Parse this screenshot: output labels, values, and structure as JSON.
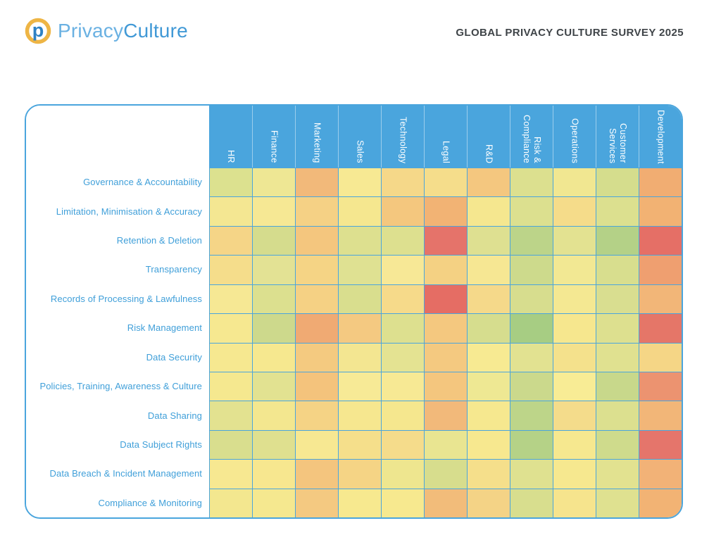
{
  "header": {
    "brand_privacy": "Privacy",
    "brand_culture": "Culture",
    "title": "GLOBAL PRIVACY CULTURE SURVEY 2025"
  },
  "colors": {
    "accent_blue": "#4aa5dd",
    "row_label_text": "#3f9fd9",
    "column_header_text": "#ffffff",
    "title_text": "#3f4448",
    "logo_privacy_text": "#6ab1e2",
    "logo_culture_text": "#4199d6",
    "logo_ring_gold": "#eeb545",
    "logo_p_blue": "#2e81c4"
  },
  "chart_data": {
    "type": "heatmap",
    "title": "GLOBAL PRIVACY CULTURE SURVEY 2025",
    "legend": "none shown; cell background color encodes result from green through yellow to orange/red; no numeric labels visible",
    "columns": [
      "HR",
      "Finance",
      "Marketing",
      "Sales",
      "Technology",
      "Legal",
      "R&D",
      "Risk & Compliance",
      "Operations",
      "Customer Services",
      "Development"
    ],
    "rows": [
      "Governance & Accountability",
      "Limitation, Minimisation & Accuracy",
      "Retention & Deletion",
      "Transparency",
      "Records of Processing & Lawfulness",
      "Risk Management",
      "Data Security",
      "Policies, Training, Awareness & Culture",
      "Data Sharing",
      "Data Subject Rights",
      "Data Breach & Incident Management",
      "Compliance & Monitoring"
    ],
    "cell_colors": [
      [
        "#dce18f",
        "#eee794",
        "#f2b97a",
        "#f7e993",
        "#f5d889",
        "#f5dd8b",
        "#f4c77f",
        "#dce08f",
        "#f1e791",
        "#d5dd8d",
        "#f1ad72"
      ],
      [
        "#f4e792",
        "#f6e894",
        "#f5d185",
        "#f5e78f",
        "#f4c77e",
        "#f2b374",
        "#f5e78f",
        "#dce08f",
        "#f5dc8a",
        "#dce08f",
        "#f2b273"
      ],
      [
        "#f5d587",
        "#d5dc8d",
        "#f4c67e",
        "#dde08f",
        "#dde08f",
        "#e5736a",
        "#dee091",
        "#bcd489",
        "#e3e291",
        "#b4d187",
        "#e56f66"
      ],
      [
        "#f5dd8b",
        "#e3e294",
        "#f5d485",
        "#dfe192",
        "#f7e896",
        "#f4d183",
        "#f6e793",
        "#cdda8c",
        "#f2e893",
        "#d8de8e",
        "#ef9f70"
      ],
      [
        "#f6e894",
        "#dce08f",
        "#f5d184",
        "#d9de8e",
        "#f6da8a",
        "#e56d64",
        "#f5d98a",
        "#d7dd8e",
        "#f4e892",
        "#d9de90",
        "#f2b678"
      ],
      [
        "#f6e890",
        "#cdd98c",
        "#f0aa73",
        "#f4c981",
        "#dde08f",
        "#f4c87f",
        "#d6dd8e",
        "#a7cd83",
        "#f6e78e",
        "#dde08f",
        "#e57668"
      ],
      [
        "#f6e890",
        "#f6e88f",
        "#f4ca80",
        "#f3e691",
        "#e4e392",
        "#f4c980",
        "#f7ea92",
        "#e2e291",
        "#f4e18c",
        "#e0e190",
        "#f5d686"
      ],
      [
        "#f5e88f",
        "#e2e291",
        "#f4c37c",
        "#f7ea96",
        "#f7e994",
        "#f4c67e",
        "#eee893",
        "#cbd98c",
        "#f8ec95",
        "#c8d88b",
        "#ec9370"
      ],
      [
        "#e3e290",
        "#f3e78f",
        "#f5d385",
        "#f6e78f",
        "#f5e78e",
        "#f2b97a",
        "#f6e88f",
        "#bdd589",
        "#f4dc8b",
        "#dce08f",
        "#f2b678"
      ],
      [
        "#d9de8e",
        "#dfe08f",
        "#f7e892",
        "#f5df8b",
        "#f5dc8b",
        "#e9e591",
        "#f7e88f",
        "#b5d287",
        "#f6e88f",
        "#cfdb8c",
        "#e5756b"
      ],
      [
        "#f7e891",
        "#f7e78f",
        "#f4c57e",
        "#f5d485",
        "#eee68f",
        "#d7dd8d",
        "#f5df8b",
        "#dfe190",
        "#f6e88f",
        "#e2e290",
        "#f2b277"
      ],
      [
        "#f3e78f",
        "#f5e88f",
        "#f4c981",
        "#f7e98f",
        "#f7e98f",
        "#f2bc7a",
        "#f4d386",
        "#d8de8e",
        "#f6e48d",
        "#dfe190",
        "#f2b374"
      ]
    ]
  }
}
